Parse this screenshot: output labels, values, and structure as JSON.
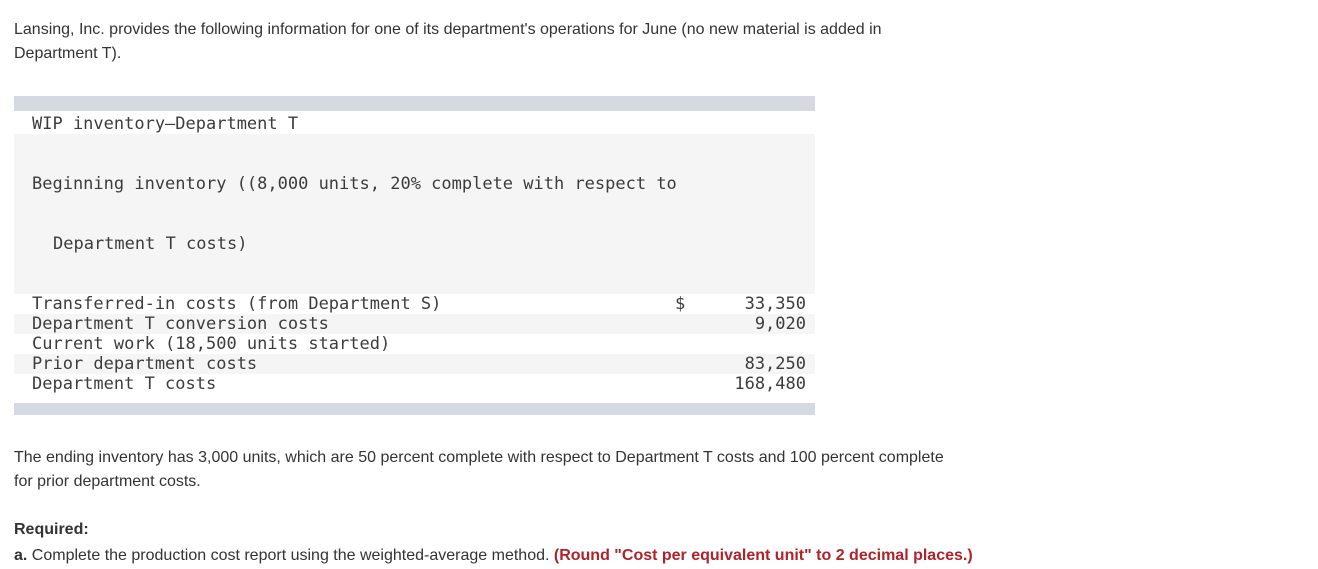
{
  "intro": "Lansing, Inc. provides the following information for one of its department's operations for June (no new material is added in\nDepartment T).",
  "table": {
    "rows": [
      {
        "label": "WIP inventory—Department T",
        "label2": "",
        "currency": "",
        "amount": ""
      },
      {
        "label": "Beginning inventory ((8,000 units, 20% complete with respect to",
        "label2": "Department T costs)",
        "currency": "",
        "amount": ""
      },
      {
        "label": "Transferred-in costs (from Department S)",
        "label2": "",
        "currency": "$",
        "amount": "33,350"
      },
      {
        "label": "Department T conversion costs",
        "label2": "",
        "currency": "",
        "amount": "9,020"
      },
      {
        "label": "Current work (18,500 units started)",
        "label2": "",
        "currency": "",
        "amount": ""
      },
      {
        "label": "Prior department costs",
        "label2": "",
        "currency": "",
        "amount": "83,250"
      },
      {
        "label": "Department T costs",
        "label2": "",
        "currency": "",
        "amount": "168,480"
      }
    ]
  },
  "ending_note": "The ending inventory has 3,000 units, which are 50 percent complete with respect to Department T costs and 100 percent complete\nfor prior department costs.",
  "required": {
    "heading": "Required:",
    "item_a_prefix": "a.",
    "item_a_text": " Complete the production cost report using the weighted-average method. ",
    "item_a_note": "(Round \"Cost per equivalent unit\" to 2 decimal places.)"
  },
  "colors": {
    "table_bar": "#d5d9e2",
    "row_stripe": "#f5f5f5",
    "note_red": "#b0222a",
    "body_text": "#333333",
    "mono_text": "#3c3c3c"
  }
}
